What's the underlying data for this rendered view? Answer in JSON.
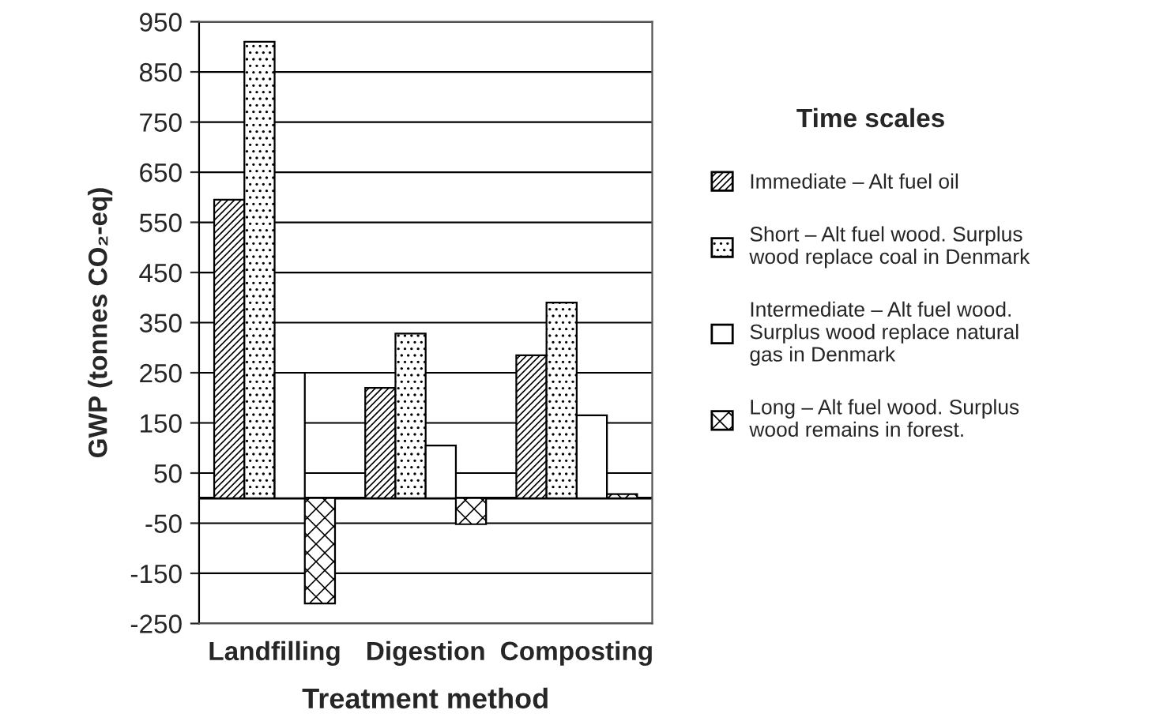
{
  "chart_data": {
    "type": "bar",
    "xlabel": "Treatment method",
    "ylabel": "GWP (tonnes CO₂-eq)",
    "legend_title": "Time scales",
    "categories": [
      "Landfilling",
      "Digestion",
      "Composting"
    ],
    "series": [
      {
        "name": "Immediate – Alt fuel oil",
        "color": "#000000",
        "values": [
          595,
          220,
          285
        ]
      },
      {
        "name": "Short – Alt fuel wood. Surplus\nwood replace coal in Denmark",
        "color": "#000000",
        "values": [
          910,
          328,
          390
        ]
      },
      {
        "name": "Intermediate – Alt fuel wood.\nSurplus wood replace natural\ngas in Denmark",
        "color": "#ffffff",
        "values": [
          250,
          105,
          165
        ]
      },
      {
        "name": "Long – Alt fuel wood. Surplus\nwood remains in forest.",
        "color": "#000000",
        "values": [
          -210,
          -52,
          8
        ]
      }
    ],
    "ylim": [
      -250,
      950
    ],
    "yticks": [
      -250,
      -150,
      -50,
      50,
      150,
      250,
      350,
      450,
      550,
      650,
      750,
      850,
      950
    ],
    "ref_lines": [
      {
        "axis": "y",
        "value": 0
      }
    ],
    "grid": "y",
    "legend": "right"
  }
}
